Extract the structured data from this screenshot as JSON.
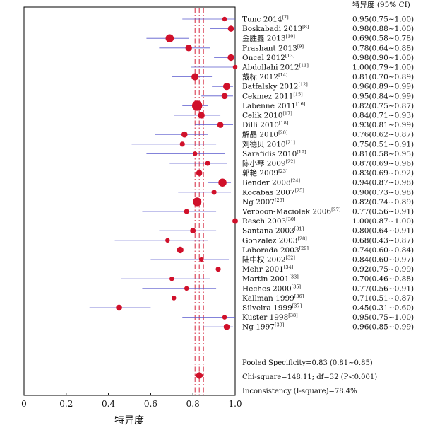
{
  "chart_data": {
    "type": "forest",
    "header": "特异度 (95% CI)",
    "xlabel": "特异度",
    "xlim": [
      0,
      1
    ],
    "ticks": [
      0,
      0.2,
      0.4,
      0.6,
      0.8,
      1.0
    ],
    "tick_labels": [
      "0",
      "0.2",
      "0.4",
      "0.6",
      "0.8",
      "1.0"
    ],
    "pooled": {
      "value": 0.83,
      "lo": 0.81,
      "hi": 0.85
    },
    "stats": [
      "Pooled Specificity=0.83 (0.81~0.85)",
      "Chi-square=148.11; df=32 (P<0.001)",
      "Inconsistency (I-square)=78.4%"
    ],
    "colors": {
      "marker": "#d0102a",
      "ci_line": "#5a5acd",
      "ref_line": "#d0102a",
      "axis": "#000000"
    },
    "studies": [
      {
        "name": "Tunc 2014",
        "ref": "[7]",
        "value": 0.95,
        "lo": 0.75,
        "hi": 1.0,
        "ci": "0.95(0.75~1.00)",
        "weight": 0.9
      },
      {
        "name": "Boskabadi 2013",
        "ref": "[8]",
        "value": 0.98,
        "lo": 0.88,
        "hi": 1.0,
        "ci": "0.98(0.88~1.00)",
        "weight": 1.2
      },
      {
        "name": "金胜鑫 2013",
        "ref": "[10]",
        "value": 0.69,
        "lo": 0.58,
        "hi": 0.78,
        "ci": "0.69(0.58~0.78)",
        "weight": 1.6
      },
      {
        "name": "Prashant 2013",
        "ref": "[9]",
        "value": 0.78,
        "lo": 0.64,
        "hi": 0.88,
        "ci": "0.78(0.64~0.88)",
        "weight": 1.3
      },
      {
        "name": "Oncel 2012",
        "ref": "[13]",
        "value": 0.98,
        "lo": 0.9,
        "hi": 1.0,
        "ci": "0.98(0.90~1.00)",
        "weight": 1.3
      },
      {
        "name": "Abdollahi 2012",
        "ref": "[11]",
        "value": 1.0,
        "lo": 0.79,
        "hi": 1.0,
        "ci": "1.00(0.79~1.00)",
        "weight": 0.9
      },
      {
        "name": "戴标 2012",
        "ref": "[14]",
        "value": 0.81,
        "lo": 0.7,
        "hi": 0.89,
        "ci": "0.81(0.70~0.89)",
        "weight": 1.4
      },
      {
        "name": "Batfalsky 2012",
        "ref": "[12]",
        "value": 0.96,
        "lo": 0.89,
        "hi": 0.99,
        "ci": "0.96(0.89~0.99)",
        "weight": 1.4
      },
      {
        "name": "Cekmez 2011",
        "ref": "[15]",
        "value": 0.95,
        "lo": 0.84,
        "hi": 0.99,
        "ci": "0.95(0.84~0.99)",
        "weight": 1.2
      },
      {
        "name": "Labenne 2011",
        "ref": "[16]",
        "value": 0.82,
        "lo": 0.75,
        "hi": 0.87,
        "ci": "0.82(0.75~0.87)",
        "weight": 2.0
      },
      {
        "name": "Celik 2010",
        "ref": "[17]",
        "value": 0.84,
        "lo": 0.71,
        "hi": 0.93,
        "ci": "0.84(0.71~0.93)",
        "weight": 1.3
      },
      {
        "name": "Dilli 2010",
        "ref": "[18]",
        "value": 0.93,
        "lo": 0.81,
        "hi": 0.99,
        "ci": "0.93(0.81~0.99)",
        "weight": 1.2
      },
      {
        "name": "解晶 2010",
        "ref": "[20]",
        "value": 0.76,
        "lo": 0.62,
        "hi": 0.87,
        "ci": "0.76(0.62~0.87)",
        "weight": 1.2
      },
      {
        "name": "刘德贝 2010",
        "ref": "[21]",
        "value": 0.75,
        "lo": 0.51,
        "hi": 0.91,
        "ci": "0.75(0.51~0.91)",
        "weight": 1.0
      },
      {
        "name": "Sarafidis 2010",
        "ref": "[19]",
        "value": 0.81,
        "lo": 0.58,
        "hi": 0.95,
        "ci": "0.81(0.58~0.95)",
        "weight": 0.9
      },
      {
        "name": "陈小琴 2009",
        "ref": "[22]",
        "value": 0.87,
        "lo": 0.69,
        "hi": 0.96,
        "ci": "0.87(0.69~0.96)",
        "weight": 1.0
      },
      {
        "name": "郭艳 2009",
        "ref": "[23]",
        "value": 0.83,
        "lo": 0.69,
        "hi": 0.92,
        "ci": "0.83(0.69~0.92)",
        "weight": 1.2
      },
      {
        "name": "Bender 2008",
        "ref": "[24]",
        "value": 0.94,
        "lo": 0.87,
        "hi": 0.98,
        "ci": "0.94(0.87~0.98)",
        "weight": 1.6
      },
      {
        "name": "Kocabas 2007",
        "ref": "[25]",
        "value": 0.9,
        "lo": 0.73,
        "hi": 0.98,
        "ci": "0.90(0.73~0.98)",
        "weight": 1.0
      },
      {
        "name": "Ng 2007",
        "ref": "[26]",
        "value": 0.82,
        "lo": 0.74,
        "hi": 0.89,
        "ci": "0.82(0.74~0.89)",
        "weight": 1.7
      },
      {
        "name": "Verboon-Maciolek 2006",
        "ref": "[27]",
        "value": 0.77,
        "lo": 0.56,
        "hi": 0.91,
        "ci": "0.77(0.56~0.91)",
        "weight": 1.0
      },
      {
        "name": "Resch 2003",
        "ref": "[30]",
        "value": 1.0,
        "lo": 0.87,
        "hi": 1.0,
        "ci": "1.00(0.87~1.00)",
        "weight": 1.1
      },
      {
        "name": "Santana 2003",
        "ref": "[31]",
        "value": 0.8,
        "lo": 0.64,
        "hi": 0.91,
        "ci": "0.80(0.64~0.91)",
        "weight": 1.1
      },
      {
        "name": "Gonzalez 2003",
        "ref": "[28]",
        "value": 0.68,
        "lo": 0.43,
        "hi": 0.87,
        "ci": "0.68(0.43~0.87)",
        "weight": 0.9
      },
      {
        "name": "Laborada 2003",
        "ref": "[29]",
        "value": 0.74,
        "lo": 0.6,
        "hi": 0.84,
        "ci": "0.74(0.60~0.84)",
        "weight": 1.3
      },
      {
        "name": "陆中权 2002",
        "ref": "[32]",
        "value": 0.84,
        "lo": 0.6,
        "hi": 0.97,
        "ci": "0.84(0.60~0.97)",
        "weight": 0.9
      },
      {
        "name": "Mehr 2001",
        "ref": "[34]",
        "value": 0.92,
        "lo": 0.75,
        "hi": 0.99,
        "ci": "0.92(0.75~0.99)",
        "weight": 1.0
      },
      {
        "name": "Martin 2001",
        "ref": "[33]",
        "value": 0.7,
        "lo": 0.46,
        "hi": 0.88,
        "ci": "0.70(0.46~0.88)",
        "weight": 0.9
      },
      {
        "name": "Heches 2000",
        "ref": "[35]",
        "value": 0.77,
        "lo": 0.56,
        "hi": 0.91,
        "ci": "0.77(0.56~0.91)",
        "weight": 0.9
      },
      {
        "name": "Kallman 1999",
        "ref": "[36]",
        "value": 0.71,
        "lo": 0.51,
        "hi": 0.87,
        "ci": "0.71(0.51~0.87)",
        "weight": 0.9
      },
      {
        "name": "Silveira 1999",
        "ref": "[37]",
        "value": 0.45,
        "lo": 0.31,
        "hi": 0.6,
        "ci": "0.45(0.31~0.60)",
        "weight": 1.2
      },
      {
        "name": "Kuster 1998",
        "ref": "[38]",
        "value": 0.95,
        "lo": 0.75,
        "hi": 1.0,
        "ci": "0.95(0.75~1.00)",
        "weight": 0.9
      },
      {
        "name": "Ng 1997",
        "ref": "[39]",
        "value": 0.96,
        "lo": 0.85,
        "hi": 0.99,
        "ci": "0.96(0.85~0.99)",
        "weight": 1.2
      }
    ]
  }
}
